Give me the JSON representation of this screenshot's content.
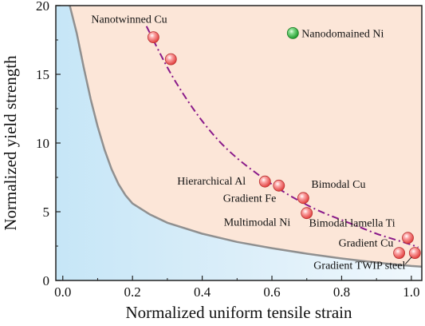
{
  "chart_data": {
    "type": "scatter",
    "title": "",
    "xlabel": "Normalized uniform tensile strain",
    "ylabel": "Normalized yield strength",
    "xlim": [
      -0.02,
      1.03
    ],
    "ylim": [
      0,
      20
    ],
    "xticks": [
      0.0,
      0.2,
      0.4,
      0.6,
      0.8,
      1.0
    ],
    "xtick_labels": [
      "0.0",
      "0.2",
      "0.4",
      "0.6",
      "0.8",
      "1.0"
    ],
    "yticks": [
      0,
      5,
      10,
      15,
      20
    ],
    "ytick_labels": [
      "0",
      "5",
      "10",
      "15",
      "20"
    ],
    "grid": false,
    "legend": "none",
    "colors": {
      "background": "#fce6d8",
      "boundary_fill": "#dbeef9",
      "boundary_line": "#909090",
      "trend_line": "#8a1a8a",
      "point_fill": "#f47a7a",
      "highlight_fill": "#3cbf4a"
    },
    "boundary_curve": {
      "x": [
        0.02,
        0.04,
        0.06,
        0.08,
        0.1,
        0.12,
        0.14,
        0.16,
        0.18,
        0.2,
        0.25,
        0.3,
        0.4,
        0.5,
        0.6,
        0.7,
        0.8,
        0.9,
        1.0,
        1.03
      ],
      "y": [
        20,
        18.0,
        15.5,
        13.2,
        11.2,
        9.5,
        8.1,
        7.0,
        6.2,
        5.6,
        4.8,
        4.2,
        3.4,
        2.8,
        2.35,
        1.95,
        1.6,
        1.3,
        1.05,
        1.0
      ]
    },
    "trend_curve": {
      "x": [
        0.24,
        0.3,
        0.35,
        0.4,
        0.45,
        0.5,
        0.55,
        0.6,
        0.65,
        0.7,
        0.75,
        0.8,
        0.85,
        0.9,
        0.95,
        1.0,
        1.02
      ],
      "y": [
        18.5,
        15.5,
        13.4,
        11.6,
        10.1,
        8.9,
        7.9,
        7.0,
        6.2,
        5.5,
        4.9,
        4.4,
        3.9,
        3.4,
        3.0,
        2.6,
        2.4
      ]
    },
    "points": [
      {
        "name": "Nanotwinned Cu",
        "x": 0.26,
        "y": 17.7,
        "group": "main"
      },
      {
        "name": "",
        "x": 0.31,
        "y": 16.1,
        "group": "main"
      },
      {
        "name": "Nanodomained Ni",
        "x": 0.66,
        "y": 18.0,
        "group": "highlight"
      },
      {
        "name": "Hierarchical Al",
        "x": 0.58,
        "y": 7.2,
        "group": "main"
      },
      {
        "name": "Gradient Fe",
        "x": 0.62,
        "y": 6.9,
        "group": "main"
      },
      {
        "name": "Bimodal Cu",
        "x": 0.69,
        "y": 6.0,
        "group": "main"
      },
      {
        "name": "Multimodal Ni",
        "x": 0.7,
        "y": 4.9,
        "group": "main"
      },
      {
        "name": "Bimodal lamella Ti",
        "x": 0.99,
        "y": 3.1,
        "group": "main"
      },
      {
        "name": "Gradient Cu",
        "x": 0.965,
        "y": 2.0,
        "group": "main"
      },
      {
        "name": "Gradient TWIP steel",
        "x": 1.01,
        "y": 2.0,
        "group": "main"
      }
    ]
  }
}
